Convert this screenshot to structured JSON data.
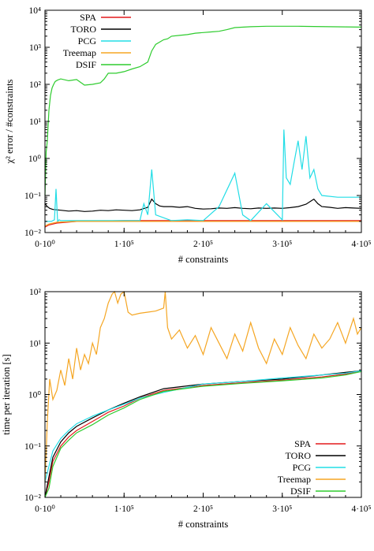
{
  "chart_data": [
    {
      "type": "line",
      "xlabel": "# constraints",
      "ylabel": "χ² error / #constraints",
      "x_range": [
        0,
        400000
      ],
      "y_range": [
        0.01,
        10000
      ],
      "y_scale": "log",
      "x_ticks": [
        {
          "value": 0,
          "label": "0·10⁰"
        },
        {
          "value": 100000,
          "label": "1·10⁵"
        },
        {
          "value": 200000,
          "label": "2·10⁵"
        },
        {
          "value": 300000,
          "label": "3·10⁵"
        },
        {
          "value": 400000,
          "label": "4·10⁵"
        }
      ],
      "y_ticks": [
        {
          "value": 0.01,
          "label": "10⁻²"
        },
        {
          "value": 0.1,
          "label": "10⁻¹"
        },
        {
          "value": 1,
          "label": "10⁰"
        },
        {
          "value": 10,
          "label": "10¹"
        },
        {
          "value": 100,
          "label": "10²"
        },
        {
          "value": 1000,
          "label": "10³"
        },
        {
          "value": 10000,
          "label": "10⁴"
        }
      ],
      "legend_position": "top-left",
      "series": [
        {
          "name": "SPA",
          "color": "#e41a1c",
          "x": [
            0,
            5000,
            15000,
            40000,
            100000,
            200000,
            300000,
            400000
          ],
          "y": [
            0.014,
            0.016,
            0.018,
            0.02,
            0.021,
            0.021,
            0.021,
            0.021
          ]
        },
        {
          "name": "TORO",
          "color": "#000000",
          "x": [
            0,
            3000,
            6000,
            10000,
            20000,
            30000,
            40000,
            50000,
            60000,
            70000,
            80000,
            90000,
            100000,
            110000,
            120000,
            130000,
            135000,
            140000,
            145000,
            150000,
            160000,
            170000,
            180000,
            190000,
            200000,
            210000,
            220000,
            230000,
            240000,
            250000,
            260000,
            270000,
            280000,
            290000,
            300000,
            310000,
            320000,
            330000,
            340000,
            345000,
            350000,
            360000,
            370000,
            380000,
            390000,
            400000
          ],
          "y": [
            0.06,
            0.05,
            0.045,
            0.042,
            0.04,
            0.038,
            0.039,
            0.037,
            0.038,
            0.04,
            0.039,
            0.041,
            0.04,
            0.039,
            0.041,
            0.048,
            0.08,
            0.06,
            0.052,
            0.05,
            0.05,
            0.048,
            0.05,
            0.045,
            0.043,
            0.044,
            0.046,
            0.045,
            0.047,
            0.045,
            0.044,
            0.046,
            0.045,
            0.046,
            0.045,
            0.047,
            0.05,
            0.058,
            0.08,
            0.06,
            0.05,
            0.048,
            0.045,
            0.047,
            0.046,
            0.045
          ]
        },
        {
          "name": "PCG",
          "color": "#22dde6",
          "x": [
            0,
            4000,
            8000,
            12000,
            14000,
            16000,
            18000,
            20000,
            40000,
            60000,
            90000,
            110000,
            120000,
            125000,
            130000,
            135000,
            140000,
            160000,
            180000,
            200000,
            220000,
            240000,
            250000,
            260000,
            280000,
            300000,
            302000,
            305000,
            310000,
            315000,
            320000,
            325000,
            330000,
            335000,
            340000,
            345000,
            350000,
            370000,
            390000,
            400000
          ],
          "y": [
            0.02,
            0.02,
            0.02,
            0.022,
            0.15,
            0.02,
            0.022,
            0.021,
            0.021,
            0.021,
            0.021,
            0.021,
            0.021,
            0.06,
            0.03,
            0.5,
            0.03,
            0.021,
            0.022,
            0.021,
            0.05,
            0.4,
            0.03,
            0.021,
            0.06,
            0.022,
            6.0,
            0.3,
            0.2,
            0.8,
            3.0,
            0.5,
            4.0,
            0.3,
            0.5,
            0.15,
            0.1,
            0.09,
            0.09,
            0.09
          ]
        },
        {
          "name": "Treemap",
          "color": "#f5a623",
          "x": [
            0,
            5000,
            15000,
            40000,
            100000,
            200000,
            300000,
            400000
          ],
          "y": [
            0.015,
            0.017,
            0.019,
            0.02,
            0.02,
            0.02,
            0.02,
            0.02
          ]
        },
        {
          "name": "DSIF",
          "color": "#2ecc2e",
          "x": [
            0,
            1500,
            3000,
            5000,
            7000,
            9000,
            11000,
            13000,
            16000,
            20000,
            30000,
            40000,
            50000,
            60000,
            70000,
            75000,
            80000,
            90000,
            100000,
            110000,
            120000,
            130000,
            135000,
            140000,
            150000,
            155000,
            160000,
            170000,
            180000,
            190000,
            200000,
            210000,
            220000,
            230000,
            240000,
            260000,
            280000,
            300000,
            320000,
            340000,
            360000,
            380000,
            400000
          ],
          "y": [
            0.1,
            1.5,
            3,
            20,
            50,
            80,
            100,
            120,
            130,
            140,
            125,
            135,
            95,
            100,
            110,
            140,
            200,
            200,
            220,
            260,
            300,
            400,
            800,
            1200,
            1600,
            1700,
            2000,
            2100,
            2200,
            2400,
            2500,
            2600,
            2700,
            3000,
            3400,
            3600,
            3700,
            3700,
            3700,
            3650,
            3600,
            3550,
            3500
          ]
        }
      ]
    },
    {
      "type": "line",
      "xlabel": "# constraints",
      "ylabel": "time per iteration [s]",
      "x_range": [
        0,
        400000
      ],
      "y_range": [
        0.01,
        100
      ],
      "y_scale": "log",
      "x_ticks": [
        {
          "value": 0,
          "label": "0·10⁰"
        },
        {
          "value": 100000,
          "label": "1·10⁵"
        },
        {
          "value": 200000,
          "label": "2·10⁵"
        },
        {
          "value": 300000,
          "label": "3·10⁵"
        },
        {
          "value": 400000,
          "label": "4·10⁵"
        }
      ],
      "y_ticks": [
        {
          "value": 0.01,
          "label": "10⁻²"
        },
        {
          "value": 0.1,
          "label": "10⁻¹"
        },
        {
          "value": 1,
          "label": "10⁰"
        },
        {
          "value": 10,
          "label": "10¹"
        },
        {
          "value": 100,
          "label": "10²"
        }
      ],
      "legend_position": "bottom-right",
      "series": [
        {
          "name": "SPA",
          "color": "#e41a1c",
          "x": [
            0,
            5000,
            10000,
            20000,
            30000,
            40000,
            60000,
            80000,
            100000,
            120000,
            150000,
            200000,
            250000,
            300000,
            350000,
            380000,
            400000
          ],
          "y": [
            0.01,
            0.02,
            0.05,
            0.1,
            0.15,
            0.2,
            0.3,
            0.45,
            0.6,
            0.85,
            1.2,
            1.5,
            1.7,
            1.9,
            2.2,
            2.5,
            2.8
          ]
        },
        {
          "name": "TORO",
          "color": "#000000",
          "x": [
            0,
            5000,
            10000,
            20000,
            30000,
            40000,
            60000,
            80000,
            100000,
            120000,
            150000,
            200000,
            250000,
            300000,
            350000,
            380000,
            400000
          ],
          "y": [
            0.01,
            0.025,
            0.06,
            0.12,
            0.18,
            0.24,
            0.35,
            0.5,
            0.68,
            0.9,
            1.3,
            1.6,
            1.8,
            2.0,
            2.4,
            2.7,
            2.9
          ]
        },
        {
          "name": "PCG",
          "color": "#22dde6",
          "x": [
            0,
            5000,
            10000,
            20000,
            30000,
            40000,
            60000,
            80000,
            100000,
            120000,
            150000,
            200000,
            250000,
            300000,
            350000,
            380000,
            400000
          ],
          "y": [
            0.02,
            0.04,
            0.08,
            0.14,
            0.2,
            0.27,
            0.38,
            0.5,
            0.65,
            0.85,
            1.1,
            1.6,
            1.8,
            2.1,
            2.4,
            2.6,
            2.9
          ]
        },
        {
          "name": "Treemap",
          "color": "#f5a623",
          "x": [
            0,
            3000,
            6000,
            10000,
            15000,
            20000,
            25000,
            30000,
            35000,
            40000,
            45000,
            50000,
            55000,
            60000,
            65000,
            70000,
            75000,
            80000,
            85000,
            88000,
            92000,
            96000,
            100000,
            105000,
            110000,
            120000,
            130000,
            140000,
            150000,
            152000,
            155000,
            160000,
            170000,
            180000,
            190000,
            200000,
            210000,
            220000,
            230000,
            240000,
            250000,
            260000,
            270000,
            280000,
            290000,
            300000,
            310000,
            320000,
            330000,
            340000,
            350000,
            360000,
            370000,
            380000,
            390000,
            395000,
            400000
          ],
          "y": [
            0.02,
            0.3,
            2,
            0.8,
            1.2,
            3,
            1.5,
            5,
            2,
            8,
            3,
            6,
            4,
            10,
            6,
            20,
            30,
            60,
            90,
            100,
            60,
            90,
            100,
            40,
            35,
            38,
            40,
            42,
            48,
            100,
            20,
            12,
            18,
            8,
            14,
            6,
            20,
            10,
            5,
            15,
            7,
            25,
            8,
            4,
            12,
            6,
            20,
            9,
            5,
            15,
            8,
            12,
            25,
            10,
            30,
            15,
            20
          ]
        },
        {
          "name": "DSIF",
          "color": "#2ecc2e",
          "x": [
            0,
            5000,
            10000,
            20000,
            30000,
            40000,
            60000,
            80000,
            100000,
            120000,
            150000,
            200000,
            250000,
            300000,
            350000,
            380000,
            400000
          ],
          "y": [
            0.01,
            0.015,
            0.04,
            0.09,
            0.13,
            0.18,
            0.26,
            0.4,
            0.55,
            0.8,
            1.15,
            1.45,
            1.65,
            1.85,
            2.1,
            2.4,
            2.8
          ]
        }
      ]
    }
  ]
}
